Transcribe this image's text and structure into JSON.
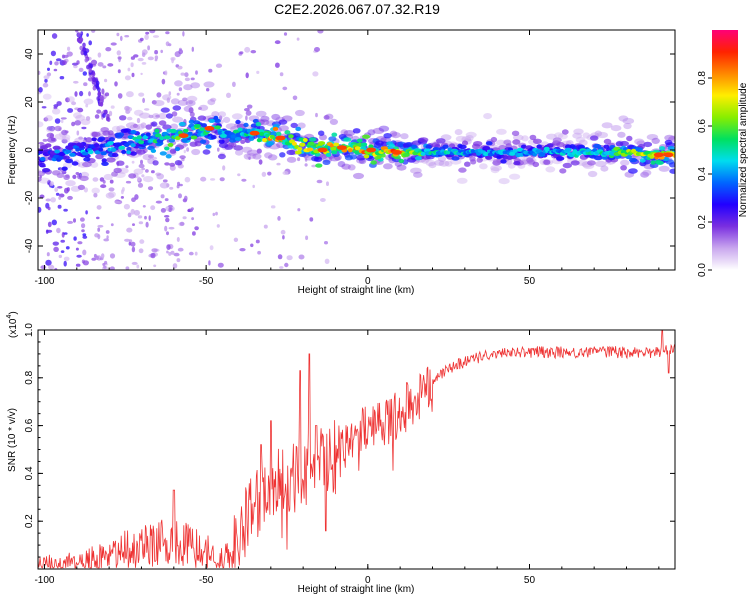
{
  "title": "C2E2.2026.067.07.32.R19",
  "chart_data": [
    {
      "type": "heatmap",
      "name": "spectrogram",
      "xlabel": "Height of straight line (km)",
      "ylabel": "Frequency (Hz)",
      "xlim": [
        -102,
        95
      ],
      "ylim": [
        -50,
        50
      ],
      "xticks": [
        -100,
        -50,
        0,
        50
      ],
      "yticks": [
        -40,
        -20,
        0,
        20,
        40
      ],
      "colorbar": {
        "label": "Normalized spectral amplitude",
        "ticks": [
          0.0,
          0.2,
          0.4,
          0.6,
          0.8
        ],
        "range": [
          0,
          1
        ],
        "colors": [
          "#ffffff",
          "#c9a6ee",
          "#7a2fe0",
          "#2200ff",
          "#0066ff",
          "#00ddee",
          "#00e060",
          "#88ee00",
          "#ffee00",
          "#ff8800",
          "#ff2200",
          "#ff0077"
        ]
      },
      "ridge": {
        "x": [
          -102,
          -95,
          -90,
          -85,
          -80,
          -75,
          -70,
          -65,
          -60,
          -55,
          -50,
          -47,
          -45,
          -40,
          -35,
          -32,
          -28,
          -25,
          -20,
          -15,
          -10,
          -5,
          0,
          5,
          10,
          20,
          30,
          40,
          50,
          60,
          70,
          80,
          90,
          95
        ],
        "freq": [
          -2,
          -1,
          0,
          1,
          1,
          3,
          4,
          5,
          6,
          7,
          9,
          10,
          7,
          6,
          7,
          6,
          5,
          4,
          2,
          0,
          1,
          1,
          0,
          0,
          -1,
          -1,
          -1,
          -1,
          -1,
          -1,
          -1,
          -1,
          -2,
          -2
        ],
        "peak_amplitude": [
          0.35,
          0.4,
          0.42,
          0.45,
          0.45,
          0.48,
          0.5,
          0.55,
          0.62,
          0.6,
          0.58,
          0.55,
          0.55,
          0.55,
          0.62,
          0.82,
          0.82,
          0.78,
          0.75,
          0.82,
          0.85,
          0.82,
          0.9,
          0.85,
          0.82,
          0.5,
          0.45,
          0.42,
          0.42,
          0.45,
          0.48,
          0.62,
          0.78,
          0.78
        ]
      }
    },
    {
      "type": "line",
      "name": "snr",
      "xlabel": "Height of straight line (km)",
      "ylabel": "SNR (10 * v/v)",
      "y_multiplier": "(x10",
      "y_multiplier_exp": "4",
      "y_multiplier_close": ")",
      "xlim": [
        -102,
        95
      ],
      "ylim": [
        0,
        1.0
      ],
      "xticks": [
        -100,
        -50,
        0,
        50
      ],
      "yticks": [
        0.2,
        0.4,
        0.6,
        0.8,
        1.0
      ],
      "color": "#ee3333",
      "trend": {
        "x": [
          -102,
          -90,
          -85,
          -80,
          -75,
          -70,
          -65,
          -60,
          -55,
          -50,
          -45,
          -42,
          -40,
          -38,
          -35,
          -32,
          -30,
          -25,
          -20,
          -15,
          -10,
          -5,
          0,
          5,
          10,
          15,
          20,
          25,
          30,
          35,
          40,
          50,
          60,
          70,
          80,
          90,
          95
        ],
        "y": [
          0.02,
          0.03,
          0.05,
          0.06,
          0.09,
          0.1,
          0.12,
          0.14,
          0.1,
          0.08,
          0.05,
          0.06,
          0.12,
          0.2,
          0.28,
          0.32,
          0.34,
          0.38,
          0.42,
          0.46,
          0.5,
          0.55,
          0.6,
          0.62,
          0.66,
          0.72,
          0.78,
          0.84,
          0.87,
          0.89,
          0.9,
          0.91,
          0.91,
          0.91,
          0.91,
          0.91,
          0.92
        ]
      },
      "spikes": [
        {
          "x": -60,
          "y": 0.33
        },
        {
          "x": -33,
          "y": 0.52
        },
        {
          "x": -30,
          "y": 0.62
        },
        {
          "x": -21,
          "y": 0.83
        },
        {
          "x": -18,
          "y": 0.9
        },
        {
          "x": -16,
          "y": 0.6
        },
        {
          "x": -13,
          "y": 0.16
        },
        {
          "x": 12,
          "y": 0.78
        },
        {
          "x": 91,
          "y": 1.0
        },
        {
          "x": 93,
          "y": 0.82
        }
      ]
    }
  ]
}
